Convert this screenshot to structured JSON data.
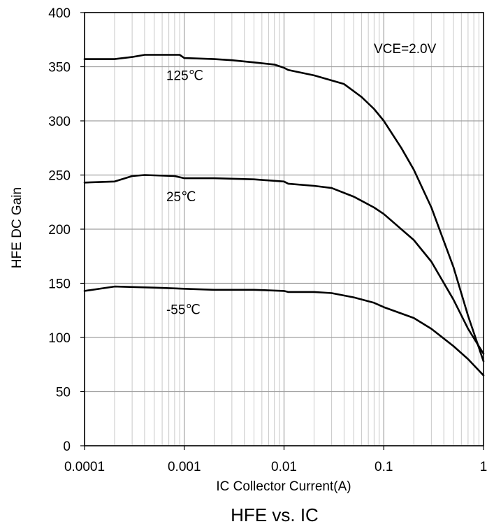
{
  "chart_data": {
    "type": "line",
    "title": "HFE vs. IC",
    "xlabel": "IC Collector Current(A)",
    "ylabel": "HFE  DC Gain",
    "x_scale": "log",
    "xlim": [
      0.0001,
      1
    ],
    "ylim": [
      0,
      400
    ],
    "x_ticks": [
      "0.0001",
      "0.001",
      "0.01",
      "0.1",
      "1"
    ],
    "y_ticks": [
      "0",
      "50",
      "100",
      "150",
      "200",
      "250",
      "300",
      "350",
      "400"
    ],
    "grid": true,
    "annotation": "VCE=2.0V",
    "series": [
      {
        "name": "125℃",
        "points": [
          [
            0.0001,
            357
          ],
          [
            0.0002,
            357
          ],
          [
            0.0003,
            359
          ],
          [
            0.0004,
            361
          ],
          [
            0.0006,
            361
          ],
          [
            0.0009,
            361
          ],
          [
            0.001,
            358
          ],
          [
            0.002,
            357
          ],
          [
            0.003,
            356
          ],
          [
            0.005,
            354
          ],
          [
            0.008,
            352
          ],
          [
            0.01,
            349
          ],
          [
            0.011,
            347
          ],
          [
            0.02,
            342
          ],
          [
            0.04,
            334
          ],
          [
            0.06,
            322
          ],
          [
            0.08,
            311
          ],
          [
            0.1,
            300
          ],
          [
            0.15,
            275
          ],
          [
            0.2,
            255
          ],
          [
            0.3,
            220
          ],
          [
            0.5,
            165
          ],
          [
            0.7,
            120
          ],
          [
            1,
            78
          ]
        ]
      },
      {
        "name": "25℃",
        "points": [
          [
            0.0001,
            243
          ],
          [
            0.0002,
            244
          ],
          [
            0.0003,
            249
          ],
          [
            0.0004,
            250
          ],
          [
            0.0008,
            249
          ],
          [
            0.001,
            247
          ],
          [
            0.002,
            247
          ],
          [
            0.005,
            246
          ],
          [
            0.01,
            244
          ],
          [
            0.011,
            242
          ],
          [
            0.02,
            240
          ],
          [
            0.03,
            238
          ],
          [
            0.05,
            230
          ],
          [
            0.08,
            220
          ],
          [
            0.1,
            214
          ],
          [
            0.2,
            190
          ],
          [
            0.3,
            170
          ],
          [
            0.5,
            135
          ],
          [
            0.7,
            108
          ],
          [
            1,
            85
          ]
        ]
      },
      {
        "name": "-55℃",
        "points": [
          [
            0.0001,
            143
          ],
          [
            0.0002,
            147
          ],
          [
            0.0005,
            146
          ],
          [
            0.001,
            145
          ],
          [
            0.002,
            144
          ],
          [
            0.005,
            144
          ],
          [
            0.01,
            143
          ],
          [
            0.011,
            142
          ],
          [
            0.02,
            142
          ],
          [
            0.03,
            141
          ],
          [
            0.05,
            137
          ],
          [
            0.08,
            132
          ],
          [
            0.1,
            128
          ],
          [
            0.2,
            118
          ],
          [
            0.3,
            108
          ],
          [
            0.5,
            92
          ],
          [
            0.7,
            80
          ],
          [
            1,
            65
          ]
        ]
      }
    ]
  }
}
